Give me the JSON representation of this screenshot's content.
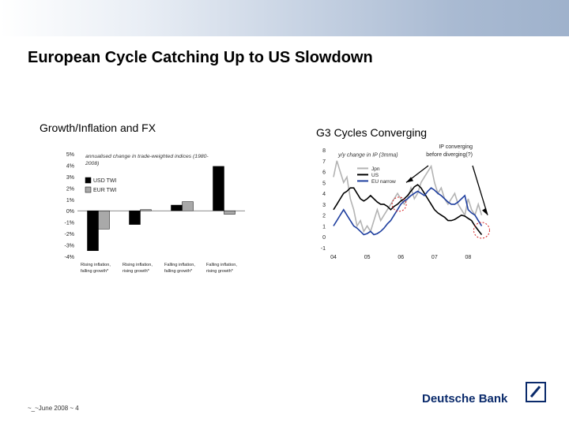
{
  "page": {
    "title": "European Cycle Catching Up to US Slowdown",
    "footer": "~_~June 2008 ~ 4",
    "brand": "Deutsche Bank",
    "colors": {
      "banner": "#9fb2cc",
      "brand": "#0a2a6b"
    }
  },
  "left_panel": {
    "subtitle": "Growth/Inflation and FX"
  },
  "right_panel": {
    "subtitle": "G3 Cycles Converging"
  },
  "chart_data": [
    {
      "type": "bar",
      "title": "annualised change in trade-weighted indices (1980-2008)",
      "categories": [
        "Rising inflation, falling growth*",
        "Rising inflation, rising growth*",
        "Falling inflation, falling growth*",
        "Falling inflation, rising growth*"
      ],
      "category_lines": [
        [
          "Rising inflation,",
          "falling growth*"
        ],
        [
          "Rising inflation,",
          "rising growth*"
        ],
        [
          "Falling inflation,",
          "falling growth*"
        ],
        [
          "Falling inflation,",
          "rising growth*"
        ]
      ],
      "series": [
        {
          "name": "USD TWI",
          "color": "#000000",
          "values": [
            -3.5,
            -1.2,
            0.5,
            3.9
          ]
        },
        {
          "name": "EUR TWI",
          "color": "#a9a9a9",
          "values": [
            -1.6,
            0.1,
            0.8,
            -0.3
          ]
        }
      ],
      "ylim": [
        -4,
        5
      ],
      "yticks": [
        5,
        4,
        3,
        2,
        1,
        0,
        -1,
        -2,
        -3,
        -4
      ],
      "ytick_labels": [
        "5%",
        "4%",
        "3%",
        "2%",
        "1%",
        "0%",
        "-1%",
        "-2%",
        "-3%",
        "-4%"
      ],
      "legend": "upper-left"
    },
    {
      "type": "line",
      "title": "y/y change in IP (3mma)",
      "annotation": "IP converging before diverging(?)",
      "annotation_lines": [
        "IP converging",
        "before diverging(?)"
      ],
      "xlim": [
        2004.0,
        2008.6
      ],
      "xticks": [
        2004,
        2005,
        2006,
        2007,
        2008
      ],
      "xtick_labels": [
        "04",
        "05",
        "06",
        "07",
        "08"
      ],
      "ylim": [
        -1,
        8
      ],
      "yticks": [
        8,
        7,
        6,
        5,
        4,
        3,
        2,
        1,
        0,
        -1
      ],
      "legend": "top-left",
      "series": [
        {
          "name": "Jpn",
          "color": "#b3b3b3",
          "x": [
            2004.0,
            2004.1,
            2004.2,
            2004.3,
            2004.4,
            2004.5,
            2004.6,
            2004.7,
            2004.8,
            2004.9,
            2005.0,
            2005.1,
            2005.2,
            2005.3,
            2005.4,
            2005.5,
            2005.6,
            2005.7,
            2005.8,
            2005.9,
            2006.0,
            2006.1,
            2006.2,
            2006.3,
            2006.4,
            2006.5,
            2006.6,
            2006.7,
            2006.8,
            2006.9,
            2007.0,
            2007.1,
            2007.2,
            2007.3,
            2007.4,
            2007.5,
            2007.6,
            2007.7,
            2007.8,
            2007.9,
            2008.0,
            2008.1,
            2008.2,
            2008.3,
            2008.4
          ],
          "y": [
            5.5,
            7.0,
            6.0,
            5.0,
            5.5,
            3.5,
            2.5,
            1.0,
            1.5,
            0.5,
            1.0,
            0.5,
            1.5,
            2.5,
            1.5,
            2.0,
            2.5,
            3.0,
            3.5,
            4.0,
            3.5,
            3.0,
            3.5,
            4.5,
            3.5,
            4.0,
            5.0,
            5.5,
            6.0,
            6.5,
            5.0,
            4.0,
            4.5,
            3.5,
            3.0,
            3.5,
            4.0,
            3.0,
            2.5,
            2.0,
            3.5,
            2.5,
            2.0,
            3.0,
            2.0
          ]
        },
        {
          "name": "US",
          "color": "#000000",
          "x": [
            2004.0,
            2004.1,
            2004.2,
            2004.3,
            2004.4,
            2004.5,
            2004.6,
            2004.7,
            2004.8,
            2004.9,
            2005.0,
            2005.1,
            2005.2,
            2005.3,
            2005.4,
            2005.5,
            2005.6,
            2005.7,
            2005.8,
            2005.9,
            2006.0,
            2006.1,
            2006.2,
            2006.3,
            2006.4,
            2006.5,
            2006.6,
            2006.7,
            2006.8,
            2006.9,
            2007.0,
            2007.1,
            2007.2,
            2007.3,
            2007.4,
            2007.5,
            2007.6,
            2007.7,
            2007.8,
            2007.9,
            2008.0,
            2008.1,
            2008.2,
            2008.3,
            2008.4
          ],
          "y": [
            2.5,
            3.0,
            3.5,
            4.0,
            4.2,
            4.5,
            4.5,
            4.0,
            3.5,
            3.3,
            3.5,
            3.8,
            3.5,
            3.2,
            3.0,
            3.0,
            2.8,
            2.5,
            2.8,
            3.0,
            3.3,
            3.5,
            3.8,
            4.2,
            4.6,
            4.8,
            4.5,
            4.0,
            3.5,
            3.0,
            2.5,
            2.2,
            2.0,
            1.8,
            1.5,
            1.5,
            1.6,
            1.8,
            2.0,
            1.9,
            1.7,
            1.5,
            1.0,
            0.6,
            0.2
          ]
        },
        {
          "name": "EU narrow",
          "color": "#1f3f9f",
          "x": [
            2004.0,
            2004.1,
            2004.2,
            2004.3,
            2004.4,
            2004.5,
            2004.6,
            2004.7,
            2004.8,
            2004.9,
            2005.0,
            2005.1,
            2005.2,
            2005.3,
            2005.4,
            2005.5,
            2005.6,
            2005.7,
            2005.8,
            2005.9,
            2006.0,
            2006.1,
            2006.2,
            2006.3,
            2006.4,
            2006.5,
            2006.6,
            2006.7,
            2006.8,
            2006.9,
            2007.0,
            2007.1,
            2007.2,
            2007.3,
            2007.4,
            2007.5,
            2007.6,
            2007.7,
            2007.8,
            2007.9,
            2008.0,
            2008.1,
            2008.2,
            2008.3,
            2008.4
          ],
          "y": [
            1.0,
            1.5,
            2.0,
            2.5,
            2.0,
            1.5,
            1.0,
            0.8,
            0.5,
            0.2,
            0.3,
            0.5,
            0.2,
            0.3,
            0.5,
            0.8,
            1.2,
            1.5,
            2.0,
            2.5,
            3.0,
            3.3,
            3.5,
            3.8,
            4.0,
            4.2,
            4.0,
            3.8,
            4.2,
            4.5,
            4.3,
            4.0,
            3.8,
            3.5,
            3.2,
            3.0,
            3.0,
            3.2,
            3.5,
            3.8,
            2.5,
            2.2,
            2.0,
            1.5,
            1.0
          ]
        }
      ]
    }
  ]
}
